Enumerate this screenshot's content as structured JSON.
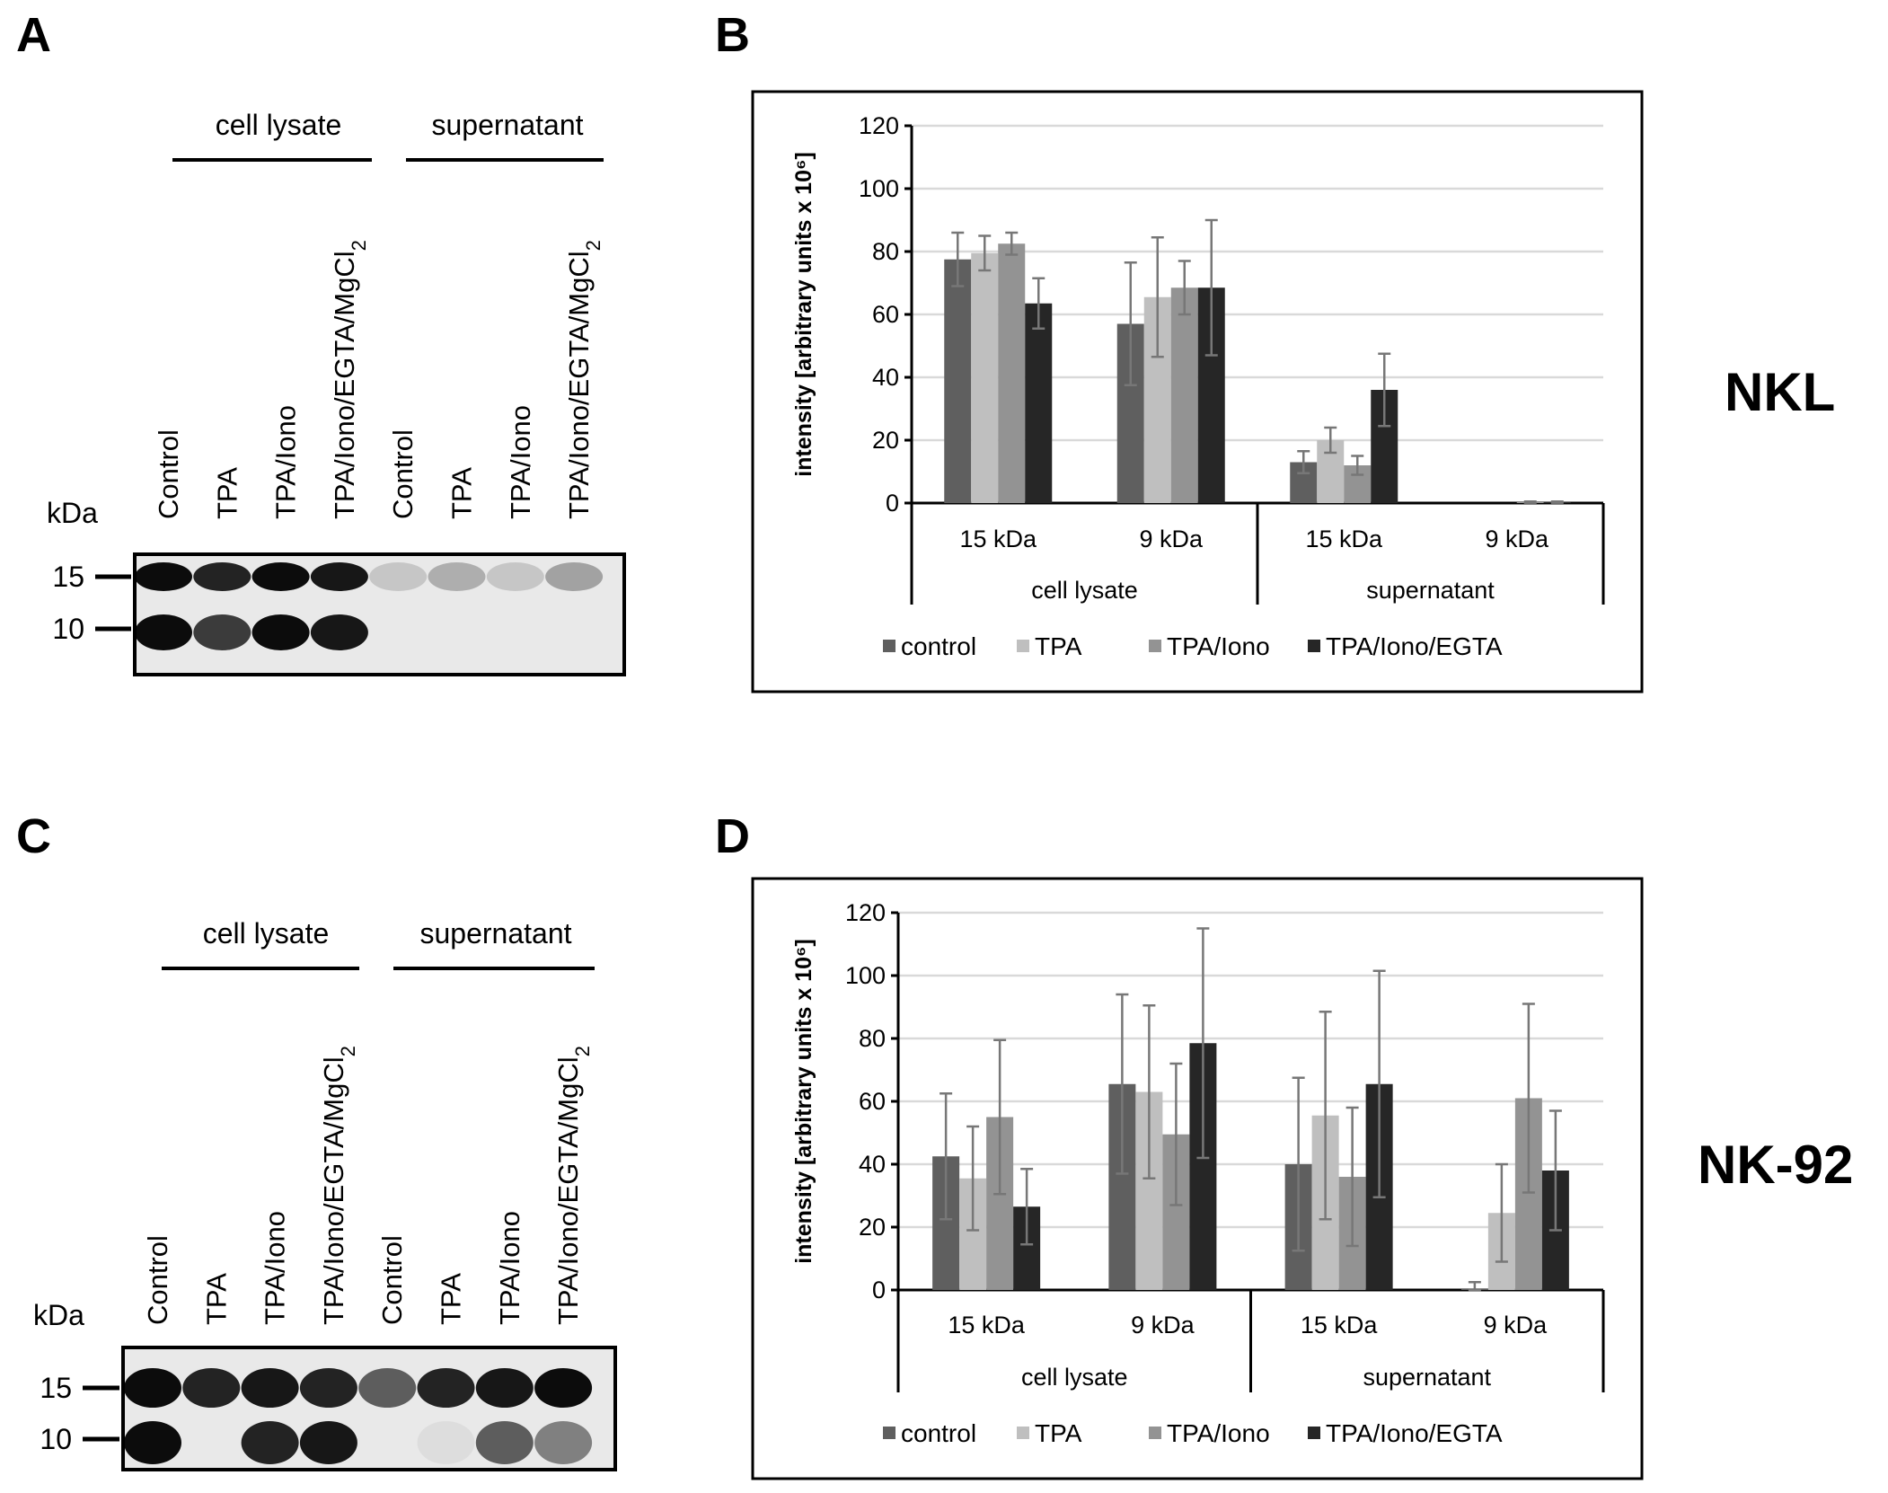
{
  "panels": {
    "A": "A",
    "B": "B",
    "C": "C",
    "D": "D"
  },
  "cell_lines": {
    "top": "NKL",
    "bottom": "NK-92"
  },
  "blot": {
    "kda_label": "kDa",
    "marker_15": "15",
    "marker_10": "10",
    "group_cell_lysate": "cell lysate",
    "group_supernatant": "supernatant",
    "lanes": [
      "Control",
      "TPA",
      "TPA/Iono",
      "TPA/Iono/EGTA/MgCl2",
      "Control",
      "TPA",
      "TPA/Iono",
      "TPA/Iono/EGTA/MgCl2"
    ],
    "nkl_band_15_intensity": [
      0.95,
      0.85,
      0.95,
      0.9,
      0.15,
      0.25,
      0.15,
      0.3
    ],
    "nkl_band_10_intensity": [
      0.95,
      0.75,
      0.95,
      0.9,
      0,
      0,
      0,
      0
    ],
    "nk92_band_15_intensity": [
      0.95,
      0.85,
      0.9,
      0.85,
      0.6,
      0.85,
      0.9,
      0.95
    ],
    "nk92_band_10_intensity": [
      0.95,
      0,
      0.85,
      0.9,
      0,
      0.05,
      0.6,
      0.45
    ]
  },
  "chart_data": [
    {
      "type": "bar",
      "panel": "B",
      "cell_line": "NKL",
      "ylabel": "intensity [arbitrary units x 10⁶]",
      "ylim": [
        0,
        120
      ],
      "yticks": [
        "0",
        "20",
        "40",
        "60",
        "80",
        "100",
        "120"
      ],
      "categories": [
        "15 kDa",
        "9 kDa",
        "15 kDa",
        "9 kDa"
      ],
      "groups": [
        "cell lysate",
        "supernatant"
      ],
      "series": [
        {
          "name": "control",
          "color": "#5f5f5f",
          "values": [
            77.5,
            57,
            13,
            0
          ],
          "errors": [
            8.5,
            19.5,
            3.5,
            0
          ]
        },
        {
          "name": "TPA",
          "color": "#bfbfbf",
          "values": [
            79.5,
            65.5,
            20,
            0
          ],
          "errors": [
            5.5,
            19,
            4,
            0
          ]
        },
        {
          "name": "TPA/Iono",
          "color": "#939393",
          "values": [
            82.5,
            68.5,
            12,
            0.3
          ],
          "errors": [
            3.5,
            8.5,
            3,
            0.2
          ]
        },
        {
          "name": "TPA/Iono/EGTA",
          "color": "#262626",
          "values": [
            63.5,
            68.5,
            36,
            0.3
          ],
          "errors": [
            8,
            21.5,
            11.5,
            0.2
          ]
        }
      ]
    },
    {
      "type": "bar",
      "panel": "D",
      "cell_line": "NK-92",
      "ylabel": "intensity [arbitrary units x 10⁶]",
      "ylim": [
        0,
        120
      ],
      "yticks": [
        "0",
        "20",
        "40",
        "60",
        "80",
        "100",
        "120"
      ],
      "categories": [
        "15 kDa",
        "9 kDa",
        "15 kDa",
        "9 kDa"
      ],
      "groups": [
        "cell lysate",
        "supernatant"
      ],
      "series": [
        {
          "name": "control",
          "color": "#5f5f5f",
          "values": [
            42.5,
            65.5,
            40,
            0.5
          ],
          "errors": [
            20,
            28.5,
            27.5,
            2
          ]
        },
        {
          "name": "TPA",
          "color": "#bfbfbf",
          "values": [
            35.5,
            63,
            55.5,
            24.5
          ],
          "errors": [
            16.5,
            27.5,
            33,
            15.5
          ]
        },
        {
          "name": "TPA/Iono",
          "color": "#939393",
          "values": [
            55,
            49.5,
            36,
            61
          ],
          "errors": [
            24.5,
            22.5,
            22,
            30
          ]
        },
        {
          "name": "TPA/Iono/EGTA",
          "color": "#262626",
          "values": [
            26.5,
            78.5,
            65.5,
            38
          ],
          "errors": [
            12,
            36.5,
            36,
            19
          ]
        }
      ]
    }
  ]
}
